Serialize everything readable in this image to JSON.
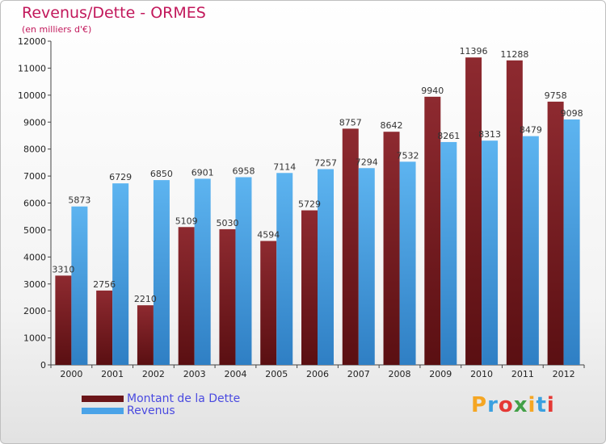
{
  "title": "Revenus/Dette - ORMES",
  "subtitle": "(en milliers d'€)",
  "brand": {
    "letters": [
      "P",
      "r",
      "o",
      "x",
      "i",
      "t",
      "i"
    ],
    "colors": [
      "#f5a623",
      "#3aa0e0",
      "#e53935",
      "#43a047",
      "#f5a623",
      "#3aa0e0",
      "#e53935"
    ]
  },
  "chart_data": {
    "type": "bar",
    "categories": [
      "2000",
      "2001",
      "2002",
      "2003",
      "2004",
      "2005",
      "2006",
      "2007",
      "2008",
      "2009",
      "2010",
      "2011",
      "2012"
    ],
    "series": [
      {
        "name": "Montant de la Dette",
        "color": "#7b1f24",
        "values": [
          3310,
          2756,
          2210,
          5109,
          5030,
          4594,
          5729,
          8757,
          8642,
          9940,
          11396,
          11288,
          9758
        ]
      },
      {
        "name": "Revenus",
        "color": "#4aa3e8",
        "values": [
          5873,
          6729,
          6850,
          6901,
          6958,
          7114,
          7257,
          7294,
          7532,
          8261,
          8313,
          8479,
          9098
        ]
      }
    ],
    "yticks": [
      "0",
      "1000",
      "2000",
      "3000",
      "4000",
      "5000",
      "6000",
      "7000",
      "8000",
      "9000",
      "10000",
      "11000",
      "12000"
    ],
    "ylim": [
      0,
      12000
    ],
    "grid": false,
    "legend": "bottom-left"
  }
}
